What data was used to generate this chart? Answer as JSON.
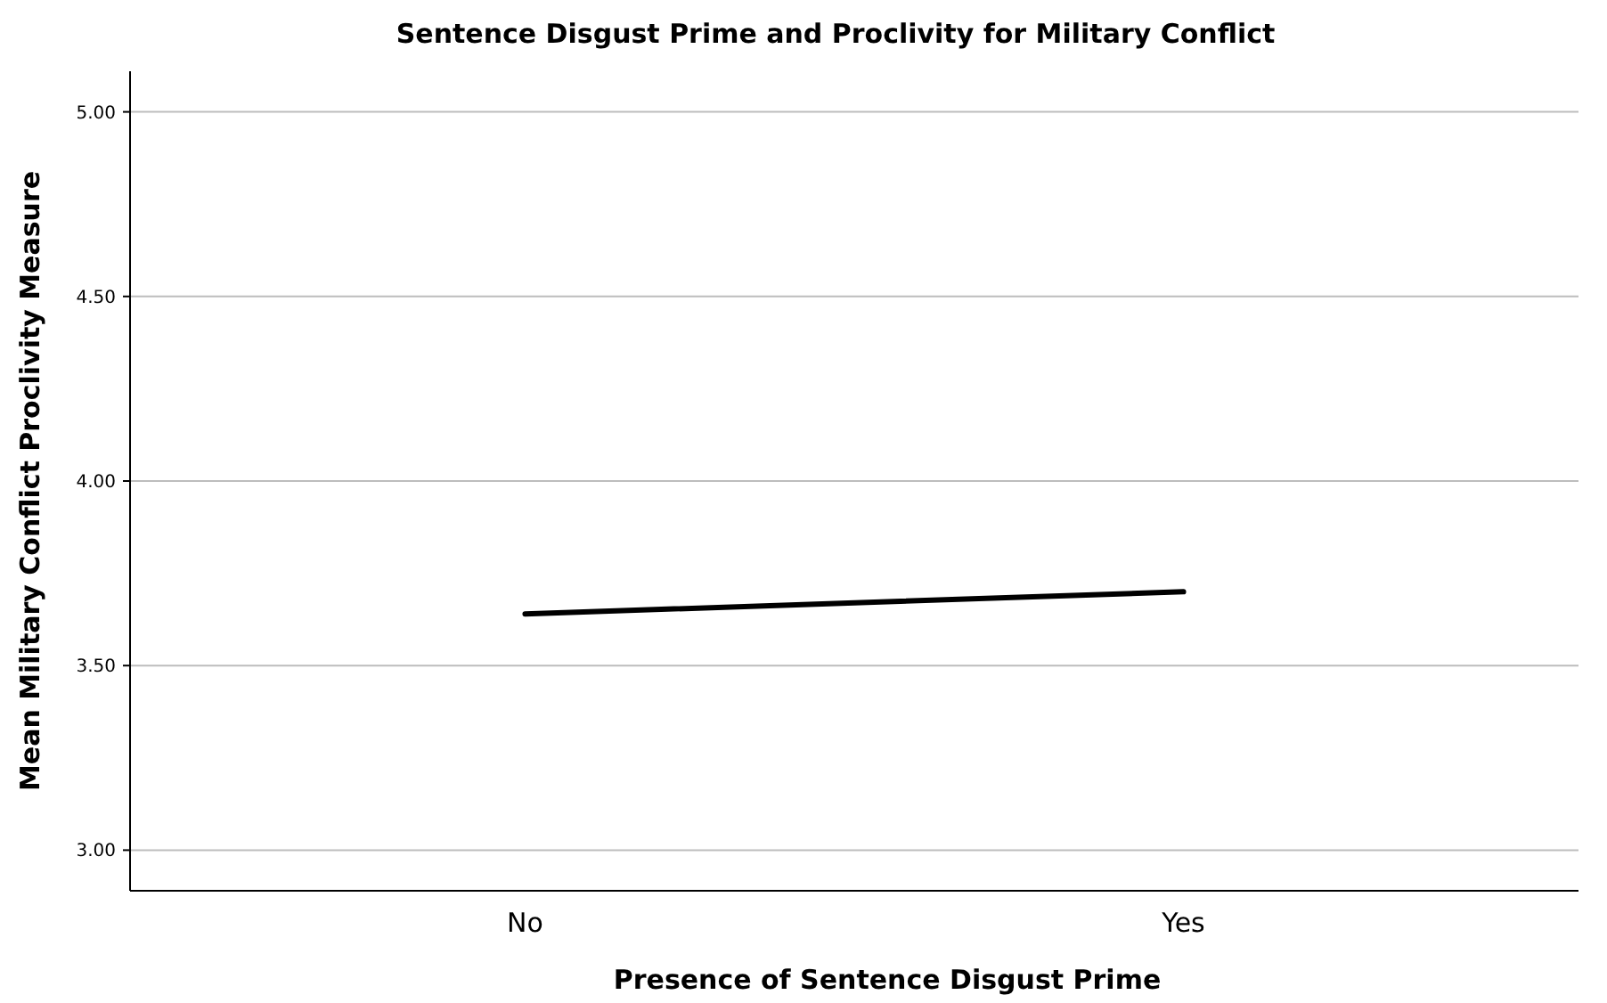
{
  "chart_data": {
    "type": "line",
    "title": "Sentence Disgust Prime and Proclivity for Military Conflict",
    "xlabel": "Presence of Sentence Disgust Prime",
    "ylabel": "Mean Military Conflict Proclivity Measure",
    "categories": [
      "No",
      "Yes"
    ],
    "series": [
      {
        "color": "#000000",
        "values": [
          3.64,
          3.7
        ]
      }
    ],
    "ylim": [
      2.89,
      5.11
    ],
    "yticks": [
      {
        "value": 3,
        "label": "3.00"
      },
      {
        "value": 3.5,
        "label": "3.50"
      },
      {
        "value": 4,
        "label": "4.00"
      },
      {
        "value": 4.5,
        "label": "4.50"
      },
      {
        "value": 5,
        "label": "5.00"
      }
    ],
    "grid": "y",
    "marker": "none",
    "line_style": "solid"
  }
}
